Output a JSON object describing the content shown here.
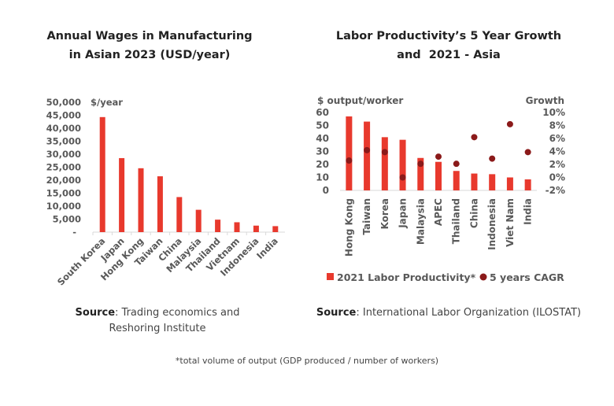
{
  "chart_data": [
    {
      "type": "bar",
      "title": "Annual Wages in Manufacturing in Asian 2023 (USD/year)",
      "title_lines": [
        "Annual Wages in Manufacturing",
        "in Asian 2023 (USD/year)"
      ],
      "ylabel": "$/year",
      "ylim": [
        0,
        50000
      ],
      "yticks": [
        "-",
        "5,000",
        "10,000",
        "15,000",
        "20,000",
        "25,000",
        "30,000",
        "35,000",
        "40,000",
        "45,000",
        "50,000"
      ],
      "categories": [
        "South Korea",
        "Japan",
        "Hong Kong",
        "Taiwan",
        "China",
        "Malaysia",
        "Thailand",
        "Vietnam",
        "Indonesia",
        "India"
      ],
      "values": [
        44300,
        28500,
        24600,
        21500,
        13500,
        8600,
        4800,
        3800,
        2500,
        2300
      ],
      "color": "#e8392d",
      "source_label": "Source",
      "source_text": ": Trading economics and",
      "source_text2": "Reshoring Institute"
    },
    {
      "type": "bar+scatter",
      "title": "Labor Productivity’s 5 Year Growth and 2021 - Asia",
      "title_lines": [
        "Labor Productivity’s 5 Year Growth",
        "and  2021 - Asia"
      ],
      "ylabel": "$ output/worker",
      "y2label": "Growth",
      "ylim": [
        0,
        60
      ],
      "y2lim": [
        -2,
        10
      ],
      "yticks": [
        "0",
        "10",
        "20",
        "30",
        "40",
        "50",
        "60"
      ],
      "y2ticks": [
        "-2%",
        "0%",
        "2%",
        "4%",
        "6%",
        "8%",
        "10%"
      ],
      "categories": [
        "Hong Kong",
        "Taiwan",
        "Korea",
        "Japan",
        "Malaysia",
        "APEC",
        "Thailand",
        "China",
        "Indonesia",
        "Viet Nam",
        "India"
      ],
      "series": [
        {
          "name": "2021 Labor Productivity*",
          "type": "bar",
          "color": "#e8392d",
          "values": [
            57,
            53,
            41,
            39,
            25,
            22,
            15,
            13,
            12.5,
            10,
            8.5
          ]
        },
        {
          "name": "5 years CAGR",
          "type": "scatter",
          "axis": "right",
          "color": "#8b1a1a",
          "values": [
            2.6,
            4.2,
            3.9,
            0.0,
            2.1,
            3.2,
            2.1,
            6.2,
            2.9,
            8.2,
            3.9
          ]
        }
      ],
      "legend": "bottom",
      "source_label": "Source",
      "source_text": ": International Labor Organization (ILOSTAT)"
    }
  ],
  "note": "*total volume of output (GDP produced / number of workers)"
}
